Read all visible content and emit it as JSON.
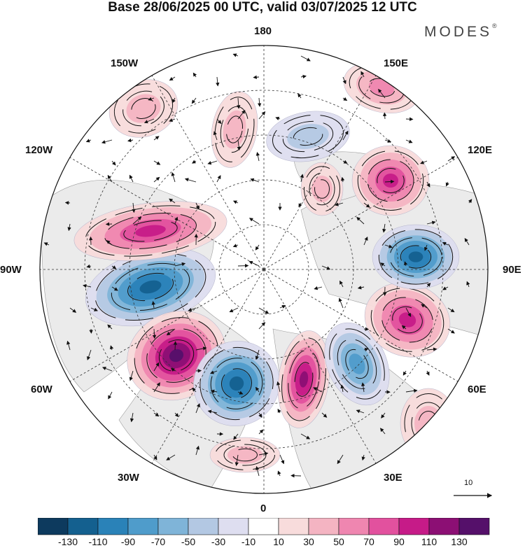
{
  "title": "Base 28/06/2025 00 UTC, valid 03/07/2025 12 UTC",
  "brand": {
    "name": "MODES",
    "mark": "®"
  },
  "longitude_labels": [
    {
      "key": "lon-180",
      "text": "180"
    },
    {
      "key": "lon-150e",
      "text": "150E"
    },
    {
      "key": "lon-120e",
      "text": "120E"
    },
    {
      "key": "lon-90e",
      "text": "90E"
    },
    {
      "key": "lon-60e",
      "text": "60E"
    },
    {
      "key": "lon-30e",
      "text": "30E"
    },
    {
      "key": "lon-0",
      "text": "0"
    },
    {
      "key": "lon-30w",
      "text": "30W"
    },
    {
      "key": "lon-60w",
      "text": "60W"
    },
    {
      "key": "lon-90w",
      "text": "90W"
    },
    {
      "key": "lon-120w",
      "text": "120W"
    },
    {
      "key": "lon-150w",
      "text": "150W"
    }
  ],
  "reference_vector": {
    "label": "10"
  },
  "colorbar": {
    "ticks": [
      "-130",
      "-110",
      "-90",
      "-70",
      "-50",
      "-30",
      "-10",
      "10",
      "30",
      "50",
      "70",
      "90",
      "110",
      "130"
    ],
    "colors": [
      "#0d3a5e",
      "#14608f",
      "#2a82b8",
      "#4f9ccb",
      "#7fb4d8",
      "#b3c8e3",
      "#dedef0",
      "#ffffff",
      "#f8dcdc",
      "#f4b4c2",
      "#ef86b0",
      "#e2519e",
      "#c61b88",
      "#8c0f74",
      "#55106a"
    ]
  },
  "anomaly_centers": [
    {
      "name": "anomaly-negative-90w",
      "sign": "negative",
      "value": -110
    },
    {
      "name": "anomaly-positive-105w",
      "sign": "positive",
      "value": 90
    },
    {
      "name": "anomaly-positive-60w",
      "sign": "positive",
      "value": 130
    },
    {
      "name": "anomaly-negative-30w",
      "sign": "negative",
      "value": -110
    },
    {
      "name": "anomaly-positive-10e",
      "sign": "positive",
      "value": 110
    },
    {
      "name": "anomaly-negative-35e",
      "sign": "negative",
      "value": -70
    },
    {
      "name": "anomaly-positive-75e",
      "sign": "positive",
      "value": 90
    },
    {
      "name": "anomaly-negative-100e",
      "sign": "negative",
      "value": -110
    },
    {
      "name": "anomaly-positive-130e",
      "sign": "positive",
      "value": 90
    },
    {
      "name": "anomaly-positive-160w",
      "sign": "positive",
      "value": 30
    },
    {
      "name": "anomaly-positive-150e",
      "sign": "positive",
      "value": 50
    },
    {
      "name": "anomaly-positive-170w",
      "sign": "positive",
      "value": 30
    },
    {
      "name": "anomaly-negative-165e",
      "sign": "negative",
      "value": -30
    },
    {
      "name": "anomaly-positive-170e",
      "sign": "positive",
      "value": 30
    },
    {
      "name": "anomaly-positive-50e",
      "sign": "positive",
      "value": 30
    },
    {
      "name": "anomaly-positive-10w",
      "sign": "positive",
      "value": 30
    }
  ]
}
